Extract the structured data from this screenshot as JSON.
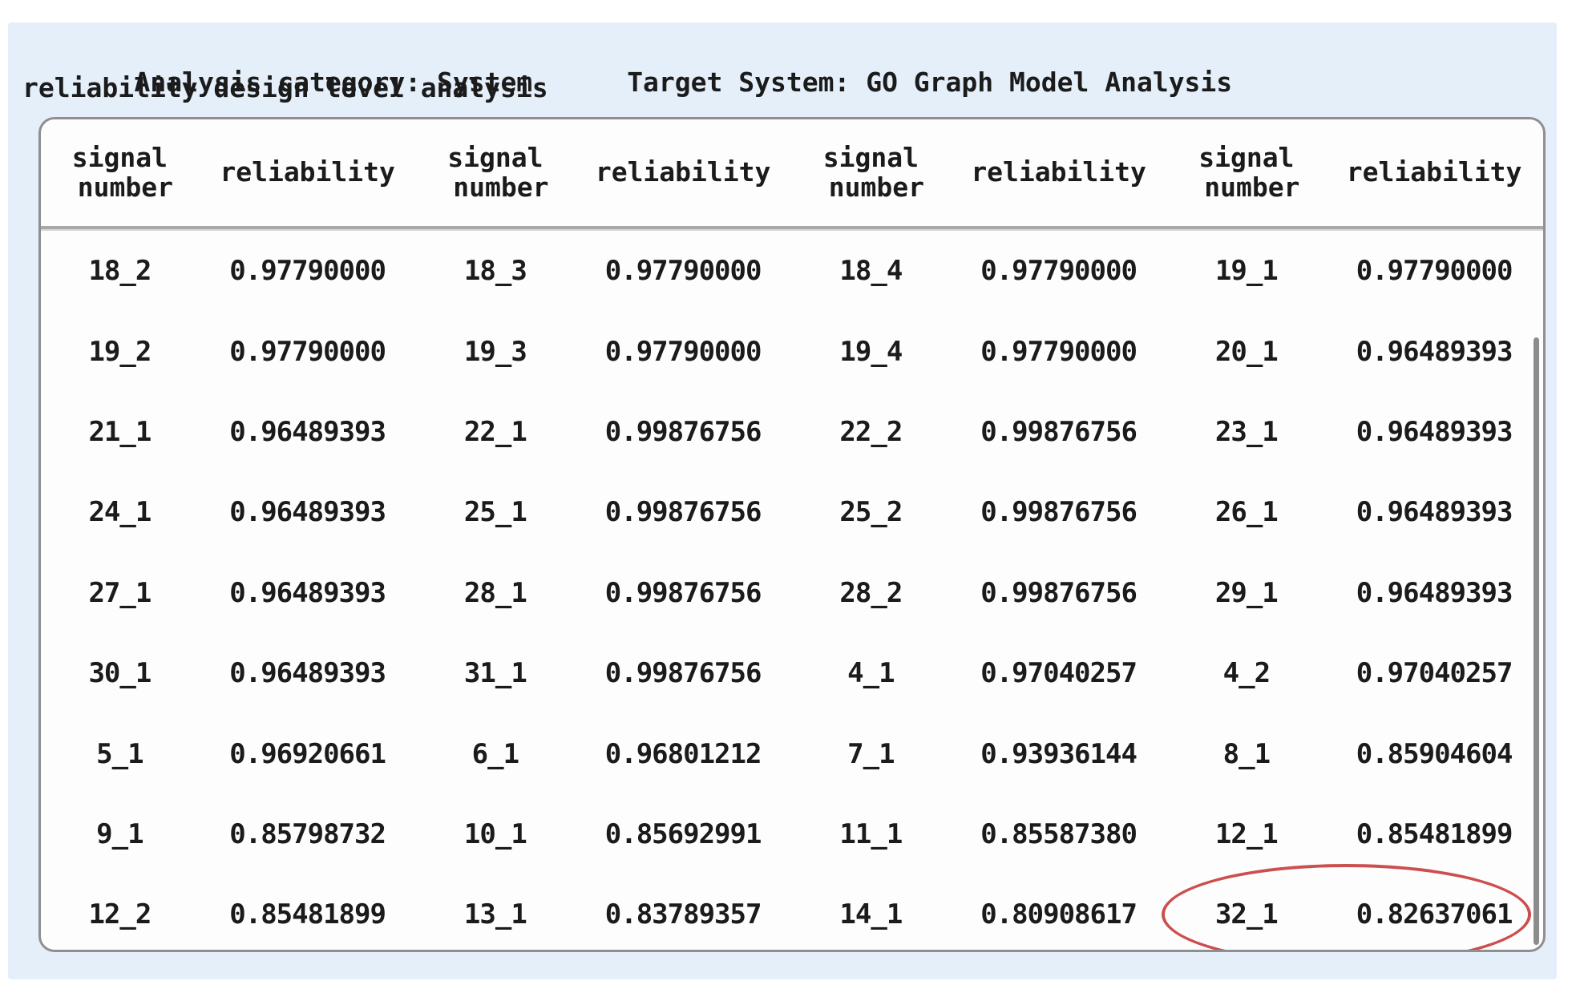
{
  "page": {
    "background_color": "#ffffff",
    "panel_color": "#e5effa",
    "card_color": "#fdfdfd",
    "border_color": "#8f8f8f",
    "text_color": "#1b1b1b"
  },
  "header": {
    "analysis_category": "Analysis category: System",
    "target_system": "Target System: GO Graph Model Analysis",
    "subtitle": "reliability design level analysis"
  },
  "table": {
    "column_headers": {
      "signal_line1": "signal",
      "signal_line2": "number",
      "reliability": "reliability"
    },
    "group_count": 4,
    "rows": [
      [
        [
          "18_2",
          "0.97790000"
        ],
        [
          "18_3",
          "0.97790000"
        ],
        [
          "18_4",
          "0.97790000"
        ],
        [
          "19_1",
          "0.97790000"
        ]
      ],
      [
        [
          "19_2",
          "0.97790000"
        ],
        [
          "19_3",
          "0.97790000"
        ],
        [
          "19_4",
          "0.97790000"
        ],
        [
          "20_1",
          "0.96489393"
        ]
      ],
      [
        [
          "21_1",
          "0.96489393"
        ],
        [
          "22_1",
          "0.99876756"
        ],
        [
          "22_2",
          "0.99876756"
        ],
        [
          "23_1",
          "0.96489393"
        ]
      ],
      [
        [
          "24_1",
          "0.96489393"
        ],
        [
          "25_1",
          "0.99876756"
        ],
        [
          "25_2",
          "0.99876756"
        ],
        [
          "26_1",
          "0.96489393"
        ]
      ],
      [
        [
          "27_1",
          "0.96489393"
        ],
        [
          "28_1",
          "0.99876756"
        ],
        [
          "28_2",
          "0.99876756"
        ],
        [
          "29_1",
          "0.96489393"
        ]
      ],
      [
        [
          "30_1",
          "0.96489393"
        ],
        [
          "31_1",
          "0.99876756"
        ],
        [
          "4_1",
          "0.97040257"
        ],
        [
          "4_2",
          "0.97040257"
        ]
      ],
      [
        [
          "5_1",
          "0.96920661"
        ],
        [
          "6_1",
          "0.96801212"
        ],
        [
          "7_1",
          "0.93936144"
        ],
        [
          "8_1",
          "0.85904604"
        ]
      ],
      [
        [
          "9_1",
          "0.85798732"
        ],
        [
          "10_1",
          "0.85692991"
        ],
        [
          "11_1",
          "0.85587380"
        ],
        [
          "12_1",
          "0.85481899"
        ]
      ],
      [
        [
          "12_2",
          "0.85481899"
        ],
        [
          "13_1",
          "0.83789357"
        ],
        [
          "14_1",
          "0.80908617"
        ],
        [
          "32_1",
          "0.82637061"
        ]
      ]
    ],
    "highlight": {
      "row_index": 8,
      "signal": "32_1",
      "reliability": "0.82637061",
      "ellipse_color": "#cc4f4f"
    }
  },
  "scrollbar": {
    "thumb_color": "#8c8c8c"
  }
}
